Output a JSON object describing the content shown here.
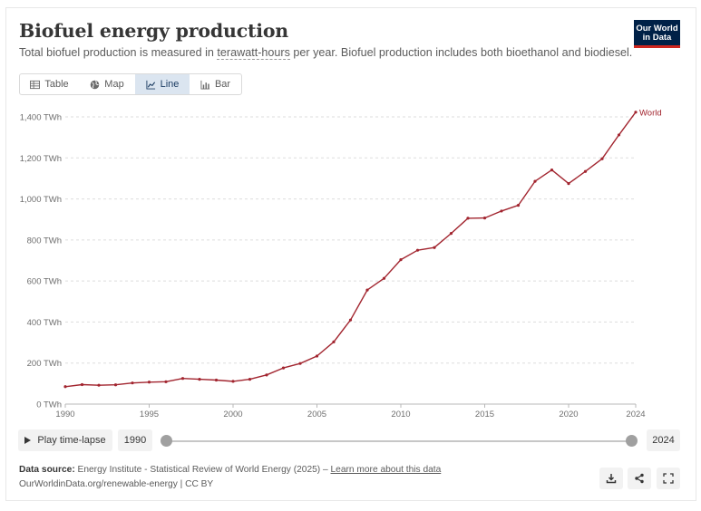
{
  "header": {
    "title": "Biofuel energy production",
    "subtitle_before": "Total biofuel production is measured in ",
    "subtitle_link": "terawatt-hours",
    "subtitle_after": " per year. Biofuel production includes both bioethanol and biodiesel.",
    "logo_line1": "Our World",
    "logo_line2": "in Data"
  },
  "tabs": [
    {
      "label": "Table",
      "icon": "table-icon"
    },
    {
      "label": "Map",
      "icon": "globe-icon"
    },
    {
      "label": "Line",
      "icon": "line-chart-icon",
      "active": true
    },
    {
      "label": "Bar",
      "icon": "bar-chart-icon"
    }
  ],
  "chart_data": {
    "type": "line",
    "title": "Biofuel energy production",
    "xlabel": "",
    "ylabel": "",
    "xlim": [
      1990,
      2024
    ],
    "ylim": [
      0,
      1400
    ],
    "y_ticks": [
      0,
      200,
      400,
      600,
      800,
      1000,
      1200,
      1400
    ],
    "y_tick_labels": [
      "0 TWh",
      "200 TWh",
      "400 TWh",
      "600 TWh",
      "800 TWh",
      "1,000 TWh",
      "1,200 TWh",
      "1,400 TWh"
    ],
    "x_ticks": [
      1990,
      1995,
      2000,
      2005,
      2010,
      2015,
      2020,
      2024
    ],
    "x_tick_labels": [
      "1990",
      "1995",
      "2000",
      "2005",
      "2010",
      "2015",
      "2020",
      "2024"
    ],
    "grid": "horizontal dashed",
    "series": [
      {
        "name": "World",
        "color": "#a2252f",
        "x": [
          1990,
          1991,
          1992,
          1993,
          1994,
          1995,
          1996,
          1997,
          1998,
          1999,
          2000,
          2001,
          2002,
          2003,
          2004,
          2005,
          2006,
          2007,
          2008,
          2009,
          2010,
          2011,
          2012,
          2013,
          2014,
          2015,
          2016,
          2017,
          2018,
          2019,
          2020,
          2021,
          2022,
          2023,
          2024
        ],
        "y": [
          85,
          95,
          92,
          94,
          103,
          107,
          109,
          125,
          121,
          117,
          111,
          121,
          142,
          176,
          198,
          234,
          303,
          410,
          556,
          613,
          704,
          750,
          763,
          832,
          906,
          907,
          941,
          969,
          1086,
          1141,
          1075,
          1134,
          1196,
          1312,
          1423
        ]
      }
    ]
  },
  "timeline": {
    "play_label": "Play time-lapse",
    "start_year": "1990",
    "end_year": "2024"
  },
  "footer": {
    "source_label": "Data source:",
    "source_text": " Energy Institute - Statistical Review of World Energy (2025) – ",
    "source_link": "Learn more about this data",
    "url_text": "OurWorldinData.org/renewable-energy | CC BY"
  }
}
